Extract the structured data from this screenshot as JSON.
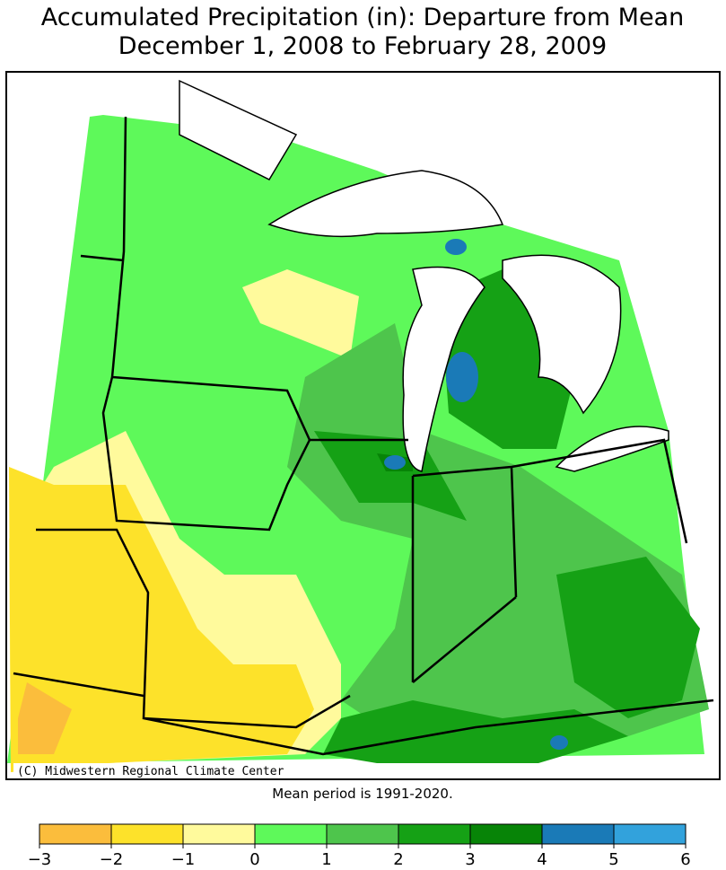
{
  "title": [
    "Accumulated Precipitation (in): Departure from Mean",
    "December 1, 2008 to February 28, 2009"
  ],
  "credit": "(C) Midwestern Regional Climate Center",
  "note": "Mean period is 1991-2020.",
  "legend": {
    "ticks": [
      {
        "value": -3,
        "label": "−3"
      },
      {
        "value": -2,
        "label": "−2"
      },
      {
        "value": -1,
        "label": "−1"
      },
      0,
      1,
      2,
      3,
      4,
      5,
      6
    ],
    "colors": [
      "#fbbd3c",
      "#fde22a",
      "#fffa9c",
      "#5ef95a",
      "#4ec54c",
      "#15a115",
      "#078407",
      "#1a7ab7",
      "#32a2dc"
    ]
  }
}
